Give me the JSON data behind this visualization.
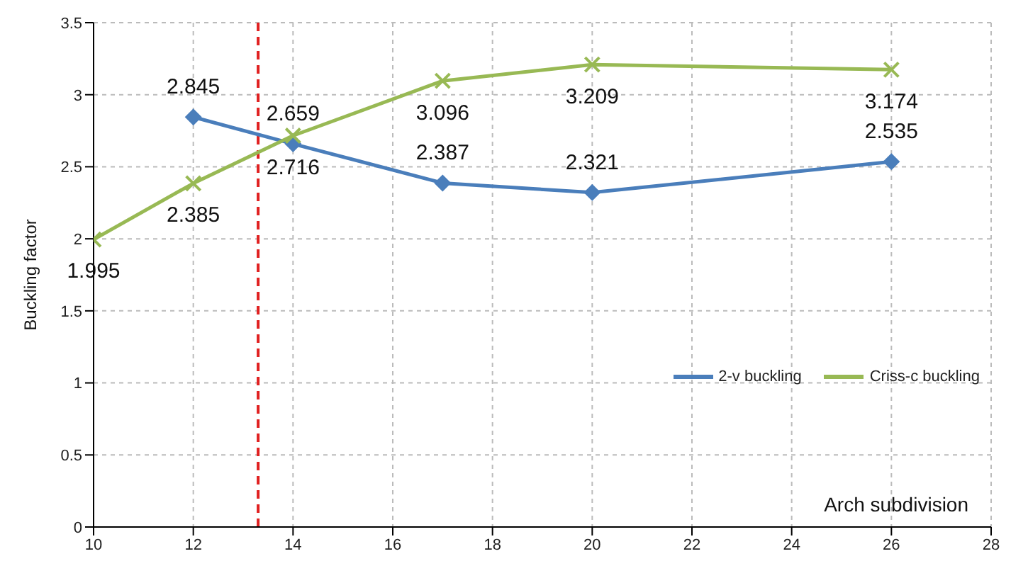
{
  "chart_data": {
    "type": "line",
    "xlabel": "Arch subdivision",
    "ylabel": "Buckling factor",
    "xlim": [
      10,
      28
    ],
    "xticks": [
      10,
      12,
      14,
      16,
      18,
      20,
      22,
      24,
      26,
      28
    ],
    "ylim": [
      0,
      3.5
    ],
    "yticks": [
      0,
      0.5,
      1,
      1.5,
      2,
      2.5,
      3,
      3.5
    ],
    "grid": true,
    "legend": "right",
    "data_labels": true,
    "line_style": "solid",
    "series": [
      {
        "name": "2-v buckling",
        "color": "#4a7ebb",
        "marker": "diamond",
        "x": [
          12,
          14,
          17,
          20,
          26
        ],
        "values": [
          2.845,
          2.659,
          2.387,
          2.321,
          2.535
        ]
      },
      {
        "name": "Criss-c buckling",
        "color": "#98b954",
        "marker": "cross",
        "x": [
          10,
          12,
          14,
          17,
          20,
          26
        ],
        "values": [
          1.995,
          2.385,
          2.716,
          3.096,
          3.209,
          3.174
        ]
      }
    ],
    "ref_lines": [
      {
        "axis": "x",
        "value": 13.3,
        "color": "#e02020",
        "line_style": "dashed"
      }
    ]
  }
}
